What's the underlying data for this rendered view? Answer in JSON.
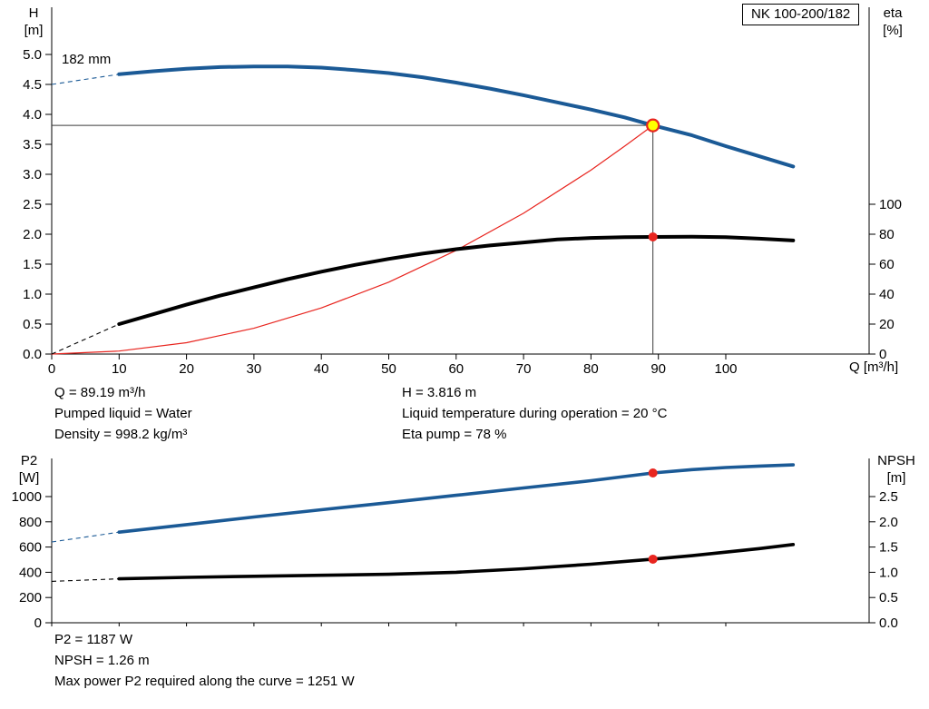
{
  "colors": {
    "curve_blue": "#1b5a96",
    "curve_black": "#000000",
    "red": "#e8251f",
    "duty_fill": "#ffff00",
    "crosshair": "#3a3a3a"
  },
  "axes": {
    "h": {
      "name": "H",
      "unit": "[m]"
    },
    "eta": {
      "name": "eta",
      "unit": "[%]"
    },
    "p2": {
      "name": "P2",
      "unit": "[W]"
    },
    "npsh": {
      "name": "NPSH",
      "unit": "[m]"
    },
    "x_label": "Q [m³/h]"
  },
  "impeller_label": "182 mm",
  "operating_point": {
    "q": "Q = 89.19 m³/h",
    "h": "H = 3.816 m",
    "liquid": "Pumped liquid = Water",
    "temp": "Liquid temperature during operation = 20 °C",
    "density": "Density = 998.2 kg/m³",
    "eta": "Eta pump = 78 %"
  },
  "power_block": {
    "p2": "P2 = 1187 W",
    "npsh": "NPSH = 1.26 m",
    "max_p2": "Max power P2 required along the curve = 1251 W"
  },
  "chart_data": [
    {
      "id": "head-eta",
      "type": "line",
      "title": "NK 100-200/182",
      "xlabel": "Q [m³/h]",
      "x_ticks": [
        "0",
        "10",
        "20",
        "30",
        "40",
        "50",
        "60",
        "70",
        "80",
        "90",
        "100"
      ],
      "x_labels": true,
      "x_range": [
        0,
        121
      ],
      "left_axis": {
        "label": "H [m]",
        "range": [
          0,
          5.8
        ],
        "ticks": [
          "0.0",
          "0.5",
          "1.0",
          "1.5",
          "2.0",
          "2.5",
          "3.0",
          "3.5",
          "4.0",
          "4.5",
          "5.0"
        ]
      },
      "right_axis": {
        "label": "eta [%]",
        "range": [
          0,
          232
        ],
        "ticks": [
          "0",
          "20",
          "40",
          "60",
          "80",
          "100"
        ]
      },
      "series": [
        {
          "name": "head-curve-182mm",
          "axis": "left",
          "color": "#1b5a96",
          "width": 4,
          "intro": [
            [
              0,
              4.5
            ],
            [
              10,
              4.67
            ]
          ],
          "points": [
            [
              10,
              4.67
            ],
            [
              15,
              4.72
            ],
            [
              20,
              4.76
            ],
            [
              25,
              4.79
            ],
            [
              30,
              4.8
            ],
            [
              35,
              4.8
            ],
            [
              40,
              4.78
            ],
            [
              45,
              4.74
            ],
            [
              50,
              4.69
            ],
            [
              55,
              4.62
            ],
            [
              60,
              4.53
            ],
            [
              65,
              4.43
            ],
            [
              70,
              4.32
            ],
            [
              75,
              4.2
            ],
            [
              80,
              4.08
            ],
            [
              85,
              3.95
            ],
            [
              89.19,
              3.816
            ],
            [
              95,
              3.65
            ],
            [
              100,
              3.47
            ],
            [
              105,
              3.3
            ],
            [
              110,
              3.13
            ]
          ]
        },
        {
          "name": "system-curve",
          "axis": "left",
          "color": "#e8251f",
          "width": 1.2,
          "points": [
            [
              0,
              0
            ],
            [
              10,
              0.05
            ],
            [
              20,
              0.19
            ],
            [
              30,
              0.43
            ],
            [
              40,
              0.77
            ],
            [
              50,
              1.2
            ],
            [
              60,
              1.73
            ],
            [
              70,
              2.35
            ],
            [
              80,
              3.07
            ],
            [
              85,
              3.47
            ],
            [
              89.19,
              3.816
            ]
          ]
        },
        {
          "name": "efficiency-curve",
          "axis": "right",
          "color": "#000000",
          "width": 4,
          "intro": [
            [
              0,
              0
            ],
            [
              10,
              20
            ]
          ],
          "points": [
            [
              10,
              20
            ],
            [
              15,
              26.5
            ],
            [
              20,
              33
            ],
            [
              25,
              39
            ],
            [
              30,
              44.5
            ],
            [
              35,
              50
            ],
            [
              40,
              55
            ],
            [
              45,
              59.5
            ],
            [
              50,
              63.5
            ],
            [
              55,
              67
            ],
            [
              60,
              70
            ],
            [
              65,
              72.5
            ],
            [
              70,
              74.5
            ],
            [
              75,
              76.5
            ],
            [
              80,
              77.5
            ],
            [
              85,
              78
            ],
            [
              89.19,
              78.2
            ],
            [
              95,
              78.3
            ],
            [
              100,
              78
            ],
            [
              105,
              77
            ],
            [
              110,
              75.8
            ]
          ]
        }
      ],
      "crosshair": {
        "x": 89.19,
        "y": 3.816
      },
      "markers": [
        {
          "type": "duty-point",
          "axis": "left",
          "x": 89.19,
          "y": 3.816
        },
        {
          "type": "dot",
          "axis": "right",
          "x": 89.19,
          "y": 78.2
        }
      ],
      "duty_point": {
        "q": 89.19,
        "h": 3.816,
        "eta_percent": 78
      }
    },
    {
      "id": "p2-npsh",
      "type": "line",
      "xlabel": "",
      "x_ticks": [
        "0",
        "10",
        "20",
        "30",
        "40",
        "50",
        "60",
        "70",
        "80",
        "90",
        "100"
      ],
      "x_labels": false,
      "x_range": [
        0,
        121
      ],
      "left_axis": {
        "label": "P2 [W]",
        "range": [
          0,
          1300
        ],
        "ticks": [
          "0",
          "200",
          "400",
          "600",
          "800",
          "1000"
        ]
      },
      "right_axis": {
        "label": "NPSH [m]",
        "range": [
          0,
          3.25
        ],
        "ticks": [
          "0.0",
          "0.5",
          "1.0",
          "1.5",
          "2.0",
          "2.5"
        ]
      },
      "series": [
        {
          "name": "p2-curve",
          "axis": "left",
          "color": "#1b5a96",
          "width": 3.6,
          "intro": [
            [
              0,
              640
            ],
            [
              10,
              718
            ]
          ],
          "points": [
            [
              10,
              718
            ],
            [
              20,
              778
            ],
            [
              30,
              838
            ],
            [
              40,
              896
            ],
            [
              50,
              952
            ],
            [
              60,
              1010
            ],
            [
              70,
              1068
            ],
            [
              80,
              1126
            ],
            [
              89.19,
              1187
            ],
            [
              95,
              1214
            ],
            [
              100,
              1230
            ],
            [
              105,
              1242
            ],
            [
              110,
              1251
            ]
          ]
        },
        {
          "name": "npsh-curve",
          "axis": "right",
          "color": "#000000",
          "width": 3.6,
          "intro": [
            [
              0,
              0.82
            ],
            [
              10,
              0.87
            ]
          ],
          "points": [
            [
              10,
              0.87
            ],
            [
              20,
              0.9
            ],
            [
              30,
              0.92
            ],
            [
              40,
              0.94
            ],
            [
              50,
              0.96
            ],
            [
              60,
              1.0
            ],
            [
              70,
              1.07
            ],
            [
              80,
              1.16
            ],
            [
              89.19,
              1.26
            ],
            [
              95,
              1.33
            ],
            [
              100,
              1.4
            ],
            [
              105,
              1.47
            ],
            [
              110,
              1.55
            ]
          ]
        }
      ],
      "markers": [
        {
          "type": "dot",
          "axis": "left",
          "x": 89.19,
          "y": 1187
        },
        {
          "type": "dot",
          "axis": "right",
          "x": 89.19,
          "y": 1.26
        }
      ],
      "duty_point": {
        "q": 89.19,
        "p2_w": 1187,
        "npsh_m": 1.26
      }
    }
  ]
}
